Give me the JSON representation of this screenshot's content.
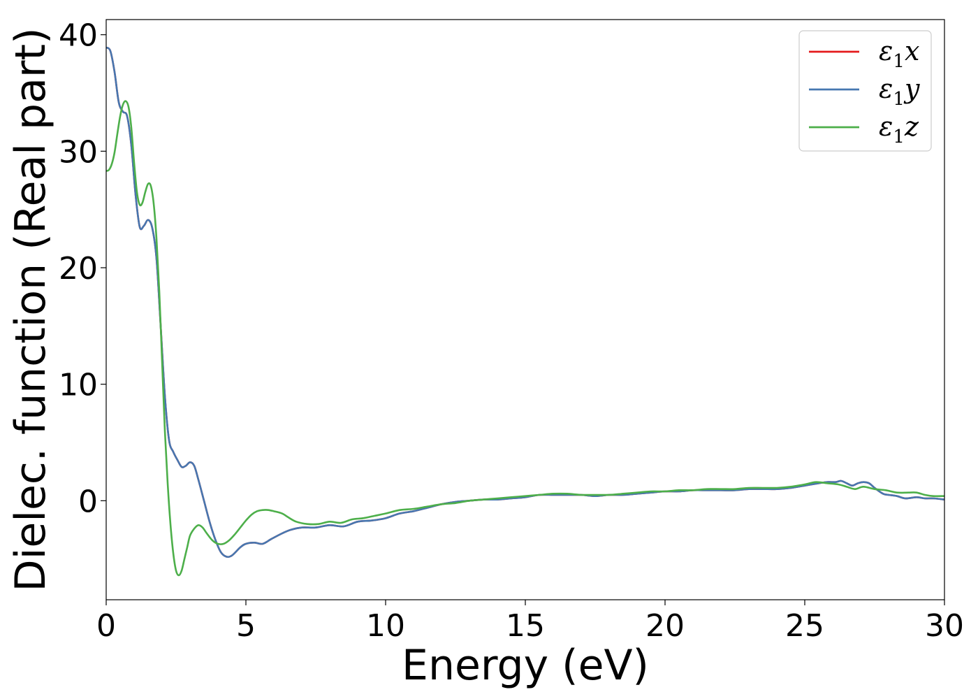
{
  "chart_data": {
    "type": "line",
    "title": "",
    "xlabel": "Energy (eV)",
    "ylabel": "Dielec. function (Real part)",
    "xlim": [
      0,
      30
    ],
    "ylim": [
      -8.5,
      41.3
    ],
    "xticks": [
      0,
      5,
      10,
      15,
      20,
      25,
      30
    ],
    "xtick_labels": [
      "0",
      "5",
      "10",
      "15",
      "20",
      "25",
      "30"
    ],
    "yticks": [
      0,
      10,
      20,
      30,
      40
    ],
    "ytick_labels": [
      "0",
      "10",
      "20",
      "30",
      "40"
    ],
    "grid": false,
    "legend_position": "top-right",
    "series": [
      {
        "name": "ε1x",
        "name_main": "ε",
        "name_sub": "1",
        "name_suffix": "x",
        "color": "#e41a1c",
        "points": [
          [
            0,
            38.9
          ],
          [
            0.15,
            38.6
          ],
          [
            0.3,
            36.8
          ],
          [
            0.45,
            34.2
          ],
          [
            0.6,
            33.4
          ],
          [
            0.75,
            33.0
          ],
          [
            0.9,
            30.5
          ],
          [
            1.05,
            26.3
          ],
          [
            1.2,
            23.5
          ],
          [
            1.35,
            23.6
          ],
          [
            1.5,
            24.1
          ],
          [
            1.65,
            23.4
          ],
          [
            1.8,
            20.8
          ],
          [
            1.95,
            15.0
          ],
          [
            2.1,
            9.0
          ],
          [
            2.25,
            5.2
          ],
          [
            2.4,
            4.2
          ],
          [
            2.55,
            3.5
          ],
          [
            2.7,
            2.9
          ],
          [
            2.85,
            3.0
          ],
          [
            3.0,
            3.3
          ],
          [
            3.15,
            3.0
          ],
          [
            3.3,
            1.8
          ],
          [
            3.5,
            0.0
          ],
          [
            3.7,
            -1.8
          ],
          [
            3.9,
            -3.3
          ],
          [
            4.1,
            -4.4
          ],
          [
            4.3,
            -4.8
          ],
          [
            4.5,
            -4.7
          ],
          [
            4.8,
            -4.0
          ],
          [
            5.0,
            -3.7
          ],
          [
            5.3,
            -3.6
          ],
          [
            5.6,
            -3.7
          ],
          [
            5.9,
            -3.3
          ],
          [
            6.3,
            -2.8
          ],
          [
            6.6,
            -2.5
          ],
          [
            7.0,
            -2.3
          ],
          [
            7.5,
            -2.3
          ],
          [
            8.0,
            -2.1
          ],
          [
            8.5,
            -2.2
          ],
          [
            9.0,
            -1.8
          ],
          [
            9.5,
            -1.7
          ],
          [
            10.0,
            -1.5
          ],
          [
            10.5,
            -1.1
          ],
          [
            11.0,
            -0.9
          ],
          [
            11.5,
            -0.6
          ],
          [
            12.0,
            -0.3
          ],
          [
            12.5,
            -0.1
          ],
          [
            13.0,
            0.0
          ],
          [
            13.5,
            0.1
          ],
          [
            14.0,
            0.1
          ],
          [
            14.5,
            0.2
          ],
          [
            15.0,
            0.3
          ],
          [
            15.5,
            0.5
          ],
          [
            16.0,
            0.5
          ],
          [
            16.5,
            0.5
          ],
          [
            17.0,
            0.5
          ],
          [
            17.5,
            0.4
          ],
          [
            18.0,
            0.5
          ],
          [
            18.5,
            0.5
          ],
          [
            19.0,
            0.6
          ],
          [
            19.5,
            0.7
          ],
          [
            20.0,
            0.8
          ],
          [
            20.5,
            0.8
          ],
          [
            21.0,
            0.9
          ],
          [
            21.5,
            0.9
          ],
          [
            22.0,
            0.9
          ],
          [
            22.5,
            0.9
          ],
          [
            23.0,
            1.0
          ],
          [
            23.5,
            1.0
          ],
          [
            24.0,
            1.0
          ],
          [
            24.5,
            1.1
          ],
          [
            25.0,
            1.3
          ],
          [
            25.5,
            1.5
          ],
          [
            25.8,
            1.6
          ],
          [
            26.1,
            1.6
          ],
          [
            26.3,
            1.7
          ],
          [
            26.5,
            1.5
          ],
          [
            26.7,
            1.3
          ],
          [
            26.9,
            1.5
          ],
          [
            27.1,
            1.6
          ],
          [
            27.3,
            1.5
          ],
          [
            27.5,
            1.1
          ],
          [
            27.8,
            0.6
          ],
          [
            28.0,
            0.5
          ],
          [
            28.3,
            0.4
          ],
          [
            28.6,
            0.2
          ],
          [
            29.0,
            0.3
          ],
          [
            29.3,
            0.2
          ],
          [
            29.6,
            0.2
          ],
          [
            30.0,
            0.1
          ]
        ]
      },
      {
        "name": "ε1y",
        "name_main": "ε",
        "name_sub": "1",
        "name_suffix": "y",
        "color": "#4677b0",
        "points": [
          [
            0,
            38.9
          ],
          [
            0.15,
            38.6
          ],
          [
            0.3,
            36.8
          ],
          [
            0.45,
            34.2
          ],
          [
            0.6,
            33.4
          ],
          [
            0.75,
            33.0
          ],
          [
            0.9,
            30.5
          ],
          [
            1.05,
            26.3
          ],
          [
            1.2,
            23.5
          ],
          [
            1.35,
            23.6
          ],
          [
            1.5,
            24.1
          ],
          [
            1.65,
            23.4
          ],
          [
            1.8,
            20.8
          ],
          [
            1.95,
            15.0
          ],
          [
            2.1,
            9.0
          ],
          [
            2.25,
            5.2
          ],
          [
            2.4,
            4.2
          ],
          [
            2.55,
            3.5
          ],
          [
            2.7,
            2.9
          ],
          [
            2.85,
            3.0
          ],
          [
            3.0,
            3.3
          ],
          [
            3.15,
            3.0
          ],
          [
            3.3,
            1.8
          ],
          [
            3.5,
            0.0
          ],
          [
            3.7,
            -1.8
          ],
          [
            3.9,
            -3.3
          ],
          [
            4.1,
            -4.4
          ],
          [
            4.3,
            -4.8
          ],
          [
            4.5,
            -4.7
          ],
          [
            4.8,
            -4.0
          ],
          [
            5.0,
            -3.7
          ],
          [
            5.3,
            -3.6
          ],
          [
            5.6,
            -3.7
          ],
          [
            5.9,
            -3.3
          ],
          [
            6.3,
            -2.8
          ],
          [
            6.6,
            -2.5
          ],
          [
            7.0,
            -2.3
          ],
          [
            7.5,
            -2.3
          ],
          [
            8.0,
            -2.1
          ],
          [
            8.5,
            -2.2
          ],
          [
            9.0,
            -1.8
          ],
          [
            9.5,
            -1.7
          ],
          [
            10.0,
            -1.5
          ],
          [
            10.5,
            -1.1
          ],
          [
            11.0,
            -0.9
          ],
          [
            11.5,
            -0.6
          ],
          [
            12.0,
            -0.3
          ],
          [
            12.5,
            -0.1
          ],
          [
            13.0,
            0.0
          ],
          [
            13.5,
            0.1
          ],
          [
            14.0,
            0.1
          ],
          [
            14.5,
            0.2
          ],
          [
            15.0,
            0.3
          ],
          [
            15.5,
            0.5
          ],
          [
            16.0,
            0.5
          ],
          [
            16.5,
            0.5
          ],
          [
            17.0,
            0.5
          ],
          [
            17.5,
            0.4
          ],
          [
            18.0,
            0.5
          ],
          [
            18.5,
            0.5
          ],
          [
            19.0,
            0.6
          ],
          [
            19.5,
            0.7
          ],
          [
            20.0,
            0.8
          ],
          [
            20.5,
            0.8
          ],
          [
            21.0,
            0.9
          ],
          [
            21.5,
            0.9
          ],
          [
            22.0,
            0.9
          ],
          [
            22.5,
            0.9
          ],
          [
            23.0,
            1.0
          ],
          [
            23.5,
            1.0
          ],
          [
            24.0,
            1.0
          ],
          [
            24.5,
            1.1
          ],
          [
            25.0,
            1.3
          ],
          [
            25.5,
            1.5
          ],
          [
            25.8,
            1.6
          ],
          [
            26.1,
            1.6
          ],
          [
            26.3,
            1.7
          ],
          [
            26.5,
            1.5
          ],
          [
            26.7,
            1.3
          ],
          [
            26.9,
            1.5
          ],
          [
            27.1,
            1.6
          ],
          [
            27.3,
            1.5
          ],
          [
            27.5,
            1.1
          ],
          [
            27.8,
            0.6
          ],
          [
            28.0,
            0.5
          ],
          [
            28.3,
            0.4
          ],
          [
            28.6,
            0.2
          ],
          [
            29.0,
            0.3
          ],
          [
            29.3,
            0.2
          ],
          [
            29.6,
            0.2
          ],
          [
            30.0,
            0.1
          ]
        ]
      },
      {
        "name": "ε1z",
        "name_main": "ε",
        "name_sub": "1",
        "name_suffix": "z",
        "color": "#4daf4a",
        "points": [
          [
            0,
            28.3
          ],
          [
            0.1,
            28.4
          ],
          [
            0.2,
            28.9
          ],
          [
            0.3,
            29.9
          ],
          [
            0.4,
            31.5
          ],
          [
            0.5,
            33.0
          ],
          [
            0.6,
            34.0
          ],
          [
            0.7,
            34.3
          ],
          [
            0.8,
            33.8
          ],
          [
            0.9,
            32.0
          ],
          [
            1.0,
            29.0
          ],
          [
            1.1,
            26.5
          ],
          [
            1.2,
            25.4
          ],
          [
            1.3,
            25.6
          ],
          [
            1.4,
            26.5
          ],
          [
            1.5,
            27.2
          ],
          [
            1.6,
            27.0
          ],
          [
            1.7,
            25.5
          ],
          [
            1.8,
            22.5
          ],
          [
            1.9,
            18.0
          ],
          [
            2.0,
            12.0
          ],
          [
            2.1,
            6.0
          ],
          [
            2.2,
            1.5
          ],
          [
            2.3,
            -2.0
          ],
          [
            2.4,
            -4.5
          ],
          [
            2.5,
            -6.0
          ],
          [
            2.6,
            -6.4
          ],
          [
            2.7,
            -6.0
          ],
          [
            2.8,
            -5.0
          ],
          [
            2.9,
            -4.0
          ],
          [
            3.0,
            -3.0
          ],
          [
            3.15,
            -2.4
          ],
          [
            3.3,
            -2.1
          ],
          [
            3.45,
            -2.3
          ],
          [
            3.6,
            -2.8
          ],
          [
            3.8,
            -3.4
          ],
          [
            4.0,
            -3.7
          ],
          [
            4.2,
            -3.7
          ],
          [
            4.4,
            -3.4
          ],
          [
            4.6,
            -2.9
          ],
          [
            4.8,
            -2.3
          ],
          [
            5.0,
            -1.7
          ],
          [
            5.2,
            -1.2
          ],
          [
            5.4,
            -0.9
          ],
          [
            5.6,
            -0.8
          ],
          [
            5.8,
            -0.8
          ],
          [
            6.0,
            -0.9
          ],
          [
            6.3,
            -1.1
          ],
          [
            6.5,
            -1.4
          ],
          [
            6.8,
            -1.8
          ],
          [
            7.2,
            -2.0
          ],
          [
            7.6,
            -2.0
          ],
          [
            8.0,
            -1.8
          ],
          [
            8.4,
            -1.9
          ],
          [
            8.8,
            -1.6
          ],
          [
            9.2,
            -1.5
          ],
          [
            9.6,
            -1.3
          ],
          [
            10.0,
            -1.1
          ],
          [
            10.5,
            -0.8
          ],
          [
            11.0,
            -0.7
          ],
          [
            11.5,
            -0.5
          ],
          [
            12.0,
            -0.3
          ],
          [
            12.5,
            -0.2
          ],
          [
            13.0,
            0.0
          ],
          [
            13.5,
            0.1
          ],
          [
            14.0,
            0.2
          ],
          [
            14.5,
            0.3
          ],
          [
            15.0,
            0.4
          ],
          [
            15.5,
            0.5
          ],
          [
            16.0,
            0.6
          ],
          [
            16.5,
            0.6
          ],
          [
            17.0,
            0.5
          ],
          [
            17.5,
            0.5
          ],
          [
            18.0,
            0.5
          ],
          [
            18.5,
            0.6
          ],
          [
            19.0,
            0.7
          ],
          [
            19.5,
            0.8
          ],
          [
            20.0,
            0.8
          ],
          [
            20.5,
            0.9
          ],
          [
            21.0,
            0.9
          ],
          [
            21.5,
            1.0
          ],
          [
            22.0,
            1.0
          ],
          [
            22.5,
            1.0
          ],
          [
            23.0,
            1.1
          ],
          [
            23.5,
            1.1
          ],
          [
            24.0,
            1.1
          ],
          [
            24.5,
            1.2
          ],
          [
            25.0,
            1.4
          ],
          [
            25.4,
            1.6
          ],
          [
            25.8,
            1.5
          ],
          [
            26.2,
            1.4
          ],
          [
            26.5,
            1.2
          ],
          [
            26.8,
            1.0
          ],
          [
            27.1,
            1.2
          ],
          [
            27.5,
            1.0
          ],
          [
            27.9,
            0.9
          ],
          [
            28.3,
            0.7
          ],
          [
            28.7,
            0.7
          ],
          [
            29.0,
            0.7
          ],
          [
            29.3,
            0.5
          ],
          [
            29.6,
            0.4
          ],
          [
            30.0,
            0.4
          ]
        ]
      }
    ]
  }
}
